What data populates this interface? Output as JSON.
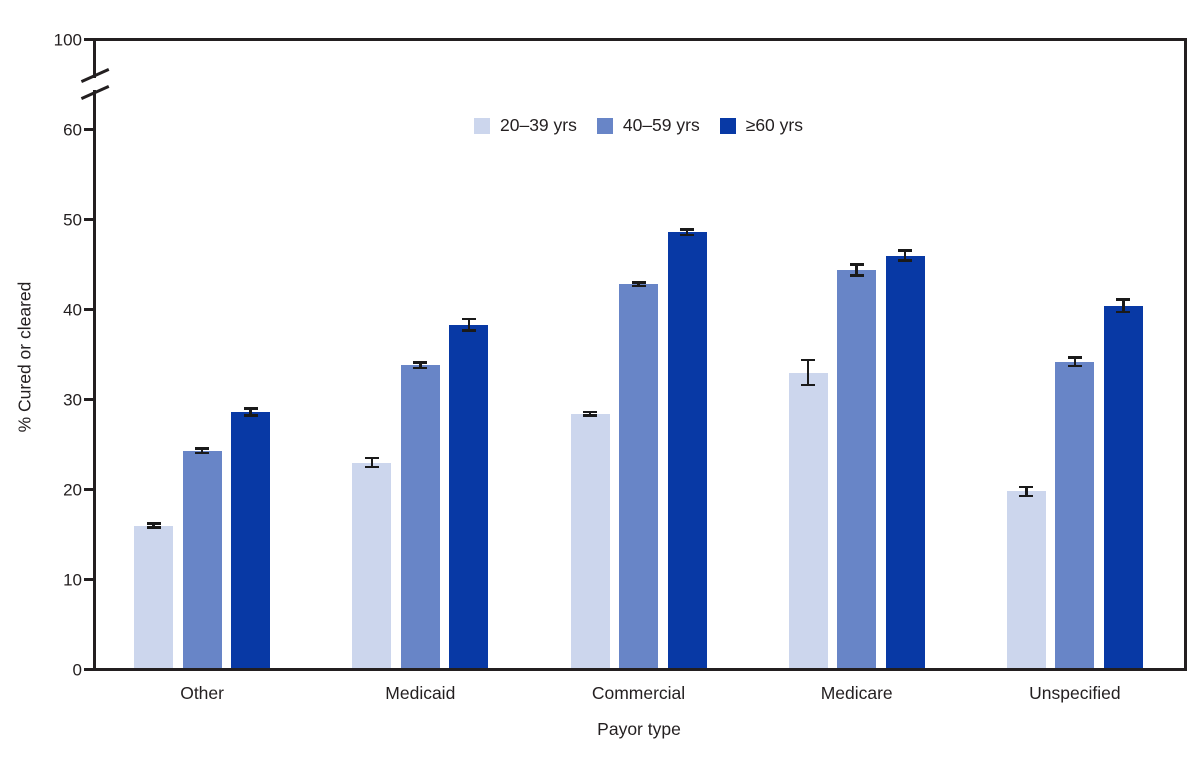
{
  "figure": {
    "background": "#ffffff",
    "text_color": "#231f20"
  },
  "chart_data": {
    "type": "bar",
    "title": "",
    "categories": [
      "Other",
      "Medicaid",
      "Commercial",
      "Medicare",
      "Unspecified"
    ],
    "series": [
      {
        "name": "20–39 yrs",
        "color": "#ccd6ed",
        "values": [
          16.0,
          23.0,
          28.4,
          33.0,
          19.8
        ],
        "errors": [
          0.2,
          0.5,
          0.2,
          1.4,
          0.5
        ]
      },
      {
        "name": "40–59 yrs",
        "color": "#6885c7",
        "values": [
          24.3,
          33.8,
          42.8,
          44.4,
          34.2
        ],
        "errors": [
          0.25,
          0.3,
          0.2,
          0.6,
          0.45
        ]
      },
      {
        "name": "≥60 yrs",
        "color": "#0839a5",
        "values": [
          28.6,
          38.3,
          48.6,
          46.0,
          40.4
        ],
        "errors": [
          0.4,
          0.65,
          0.3,
          0.55,
          0.7
        ]
      }
    ],
    "xlabel": "Payor type",
    "ylabel": "% Cured or cleared",
    "y_ticks": [
      0,
      10,
      20,
      30,
      40,
      50,
      60
    ],
    "ylim": [
      0,
      60
    ],
    "y_axis_break": {
      "enabled": true,
      "upper_tick_label": "100"
    },
    "error_bars": true,
    "grid": false,
    "legend_position": "top-center"
  }
}
